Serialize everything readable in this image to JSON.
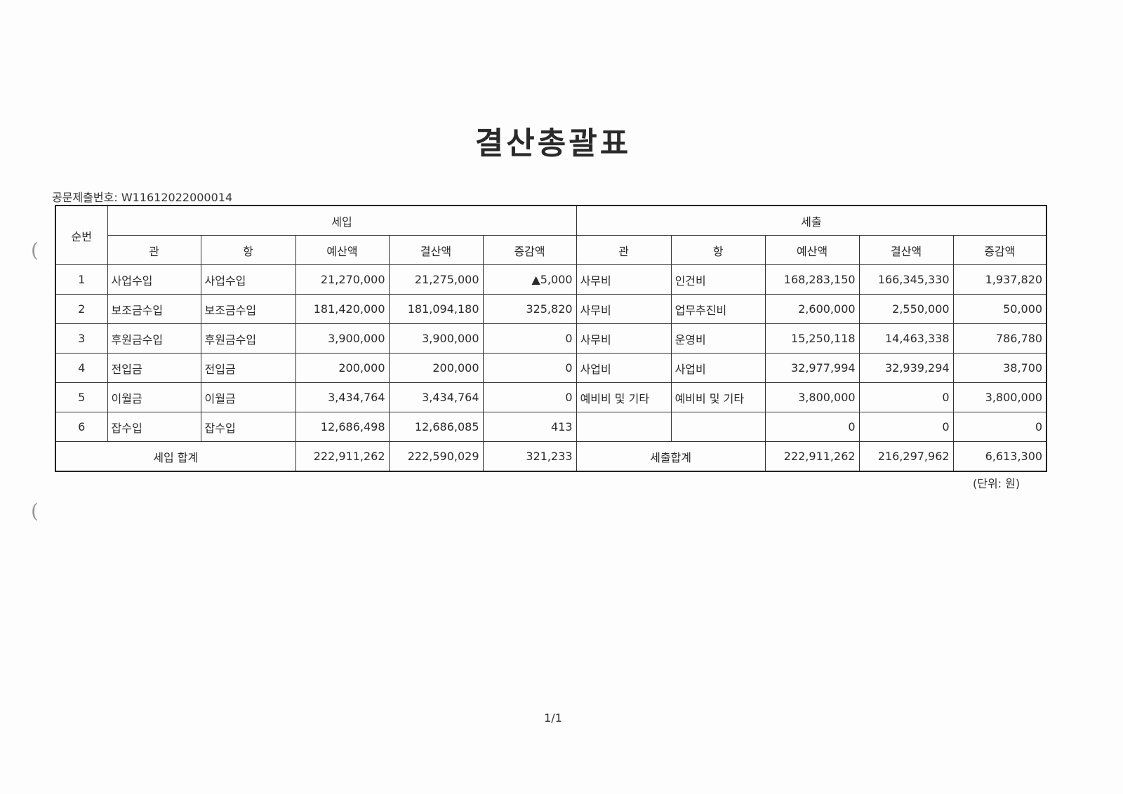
{
  "title": "결산총괄표",
  "doc_number_label": "공문제출번호:",
  "doc_number": "W11612022000014",
  "headers": {
    "seq": "순번",
    "income": "세입",
    "expense": "세출",
    "gwan": "관",
    "hang": "항",
    "budget": "예산액",
    "settled": "결산액",
    "diff": "증감액"
  },
  "rows": [
    {
      "seq": "1",
      "in_gwan": "사업수입",
      "in_hang": "사업수입",
      "in_budget": "21,270,000",
      "in_settled": "21,275,000",
      "in_diff": "▲5,000",
      "ex_gwan": "사무비",
      "ex_hang": "인건비",
      "ex_budget": "168,283,150",
      "ex_settled": "166,345,330",
      "ex_diff": "1,937,820"
    },
    {
      "seq": "2",
      "in_gwan": "보조금수입",
      "in_hang": "보조금수입",
      "in_budget": "181,420,000",
      "in_settled": "181,094,180",
      "in_diff": "325,820",
      "ex_gwan": "사무비",
      "ex_hang": "업무추진비",
      "ex_budget": "2,600,000",
      "ex_settled": "2,550,000",
      "ex_diff": "50,000"
    },
    {
      "seq": "3",
      "in_gwan": "후원금수입",
      "in_hang": "후원금수입",
      "in_budget": "3,900,000",
      "in_settled": "3,900,000",
      "in_diff": "0",
      "ex_gwan": "사무비",
      "ex_hang": "운영비",
      "ex_budget": "15,250,118",
      "ex_settled": "14,463,338",
      "ex_diff": "786,780"
    },
    {
      "seq": "4",
      "in_gwan": "전입금",
      "in_hang": "전입금",
      "in_budget": "200,000",
      "in_settled": "200,000",
      "in_diff": "0",
      "ex_gwan": "사업비",
      "ex_hang": "사업비",
      "ex_budget": "32,977,994",
      "ex_settled": "32,939,294",
      "ex_diff": "38,700"
    },
    {
      "seq": "5",
      "in_gwan": "이월금",
      "in_hang": "이월금",
      "in_budget": "3,434,764",
      "in_settled": "3,434,764",
      "in_diff": "0",
      "ex_gwan": "예비비 및 기타",
      "ex_hang": "예비비 및 기타",
      "ex_budget": "3,800,000",
      "ex_settled": "0",
      "ex_diff": "3,800,000"
    },
    {
      "seq": "6",
      "in_gwan": "잡수입",
      "in_hang": "잡수입",
      "in_budget": "12,686,498",
      "in_settled": "12,686,085",
      "in_diff": "413",
      "ex_gwan": "",
      "ex_hang": "",
      "ex_budget": "0",
      "ex_settled": "0",
      "ex_diff": "0"
    }
  ],
  "totals": {
    "in_label": "세입 합계",
    "in_budget": "222,911,262",
    "in_settled": "222,590,029",
    "in_diff": "321,233",
    "ex_label": "세출합계",
    "ex_budget": "222,911,262",
    "ex_settled": "216,297,962",
    "ex_diff": "6,613,300"
  },
  "unit": "(단위: 원)",
  "page": "1/1"
}
